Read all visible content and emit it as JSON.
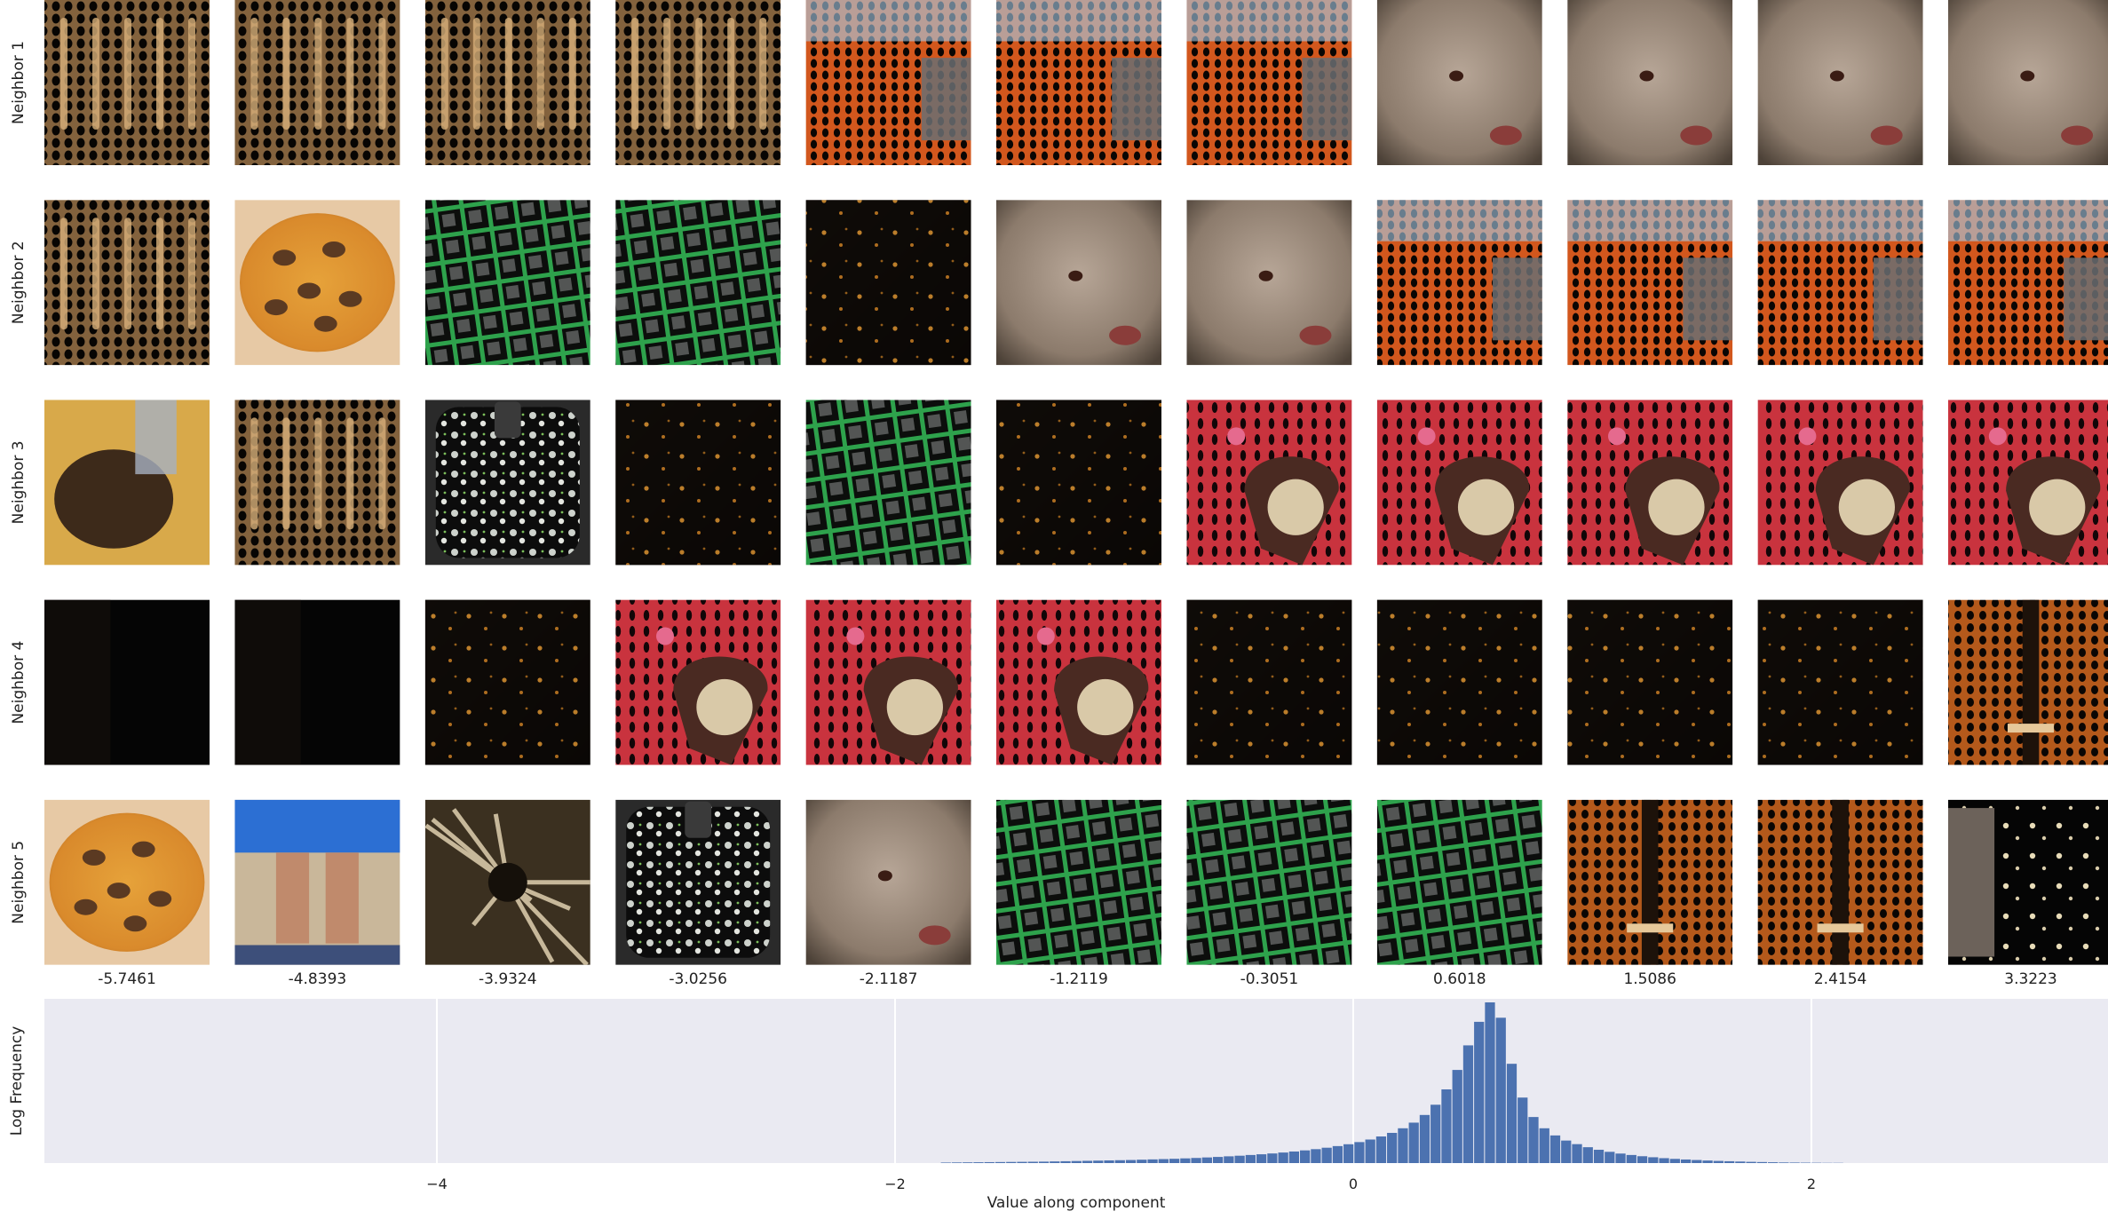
{
  "chart_data": {
    "type": "bar",
    "grid_rows": [
      "Neighbor 1",
      "Neighbor 2",
      "Neighbor 3",
      "Neighbor 4",
      "Neighbor 5"
    ],
    "grid_columns": [
      "-5.7461",
      "-4.8393",
      "-3.9324",
      "-3.0256",
      "-2.1187",
      "-1.2119",
      "-0.3051",
      "0.6018",
      "1.5086",
      "2.4154",
      "3.3223"
    ],
    "thumbnails": [
      [
        "dotted-tan-on-black",
        "dotted-tan-on-black",
        "dotted-tan-on-black",
        "dotted-tan-on-black",
        "dotted-orange-rooster",
        "dotted-orange-rooster",
        "dotted-orange-rooster",
        "mongoose",
        "mongoose",
        "mongoose",
        "mongoose"
      ],
      [
        "dotted-tan-on-black",
        "pizza",
        "green-cage",
        "green-cage",
        "dark-scene",
        "mongoose",
        "mongoose",
        "dotted-orange-rooster",
        "dotted-orange-rooster",
        "dotted-orange-rooster",
        "dotted-orange-rooster"
      ],
      [
        "dog",
        "dotted-tan-on-black",
        "dotted-bib",
        "dark-scene",
        "green-cage",
        "dark-scene",
        "red-kitty-heart",
        "red-kitty-heart",
        "red-kitty-heart",
        "red-kitty-heart",
        "red-kitty-heart"
      ],
      [
        "black",
        "black",
        "dark-scene",
        "red-kitty-heart",
        "red-kitty-heart",
        "red-kitty-heart",
        "dark-scene",
        "dark-scene",
        "dark-scene",
        "dark-scene",
        "violin"
      ],
      [
        "pizza",
        "legs-shorts",
        "spider",
        "dotted-bib",
        "mongoose",
        "green-cage",
        "green-cage",
        "green-cage",
        "violin",
        "violin",
        "dark-with-white-specks"
      ]
    ],
    "histogram": {
      "xlabel": "Value along component",
      "ylabel": "Log Frequency",
      "xticks": [
        -4,
        -2,
        0,
        2
      ],
      "xlim": [
        -5.7461,
        3.3223
      ],
      "bin_width": 0.0475,
      "bin_start": -1.8,
      "values": [
        0.05,
        0.06,
        0.07,
        0.08,
        0.09,
        0.1,
        0.11,
        0.12,
        0.13,
        0.14,
        0.16,
        0.18,
        0.2,
        0.22,
        0.24,
        0.26,
        0.28,
        0.3,
        0.33,
        0.36,
        0.39,
        0.42,
        0.46,
        0.5,
        0.55,
        0.6,
        0.66,
        0.72,
        0.79,
        0.86,
        0.94,
        1.03,
        1.13,
        1.24,
        1.36,
        1.5,
        1.66,
        1.84,
        2.05,
        2.3,
        2.6,
        2.95,
        3.4,
        3.95,
        4.7,
        5.7,
        7.2,
        9.1,
        11.5,
        13.8,
        15.7,
        14.2,
        9.7,
        6.4,
        4.5,
        3.4,
        2.7,
        2.2,
        1.85,
        1.55,
        1.3,
        1.1,
        0.93,
        0.79,
        0.67,
        0.57,
        0.48,
        0.41,
        0.35,
        0.3,
        0.25,
        0.21,
        0.18,
        0.15,
        0.12,
        0.1,
        0.08,
        0.06,
        0.05,
        0.04,
        0.03,
        0.02,
        0.02
      ],
      "bar_color": "#4c72b0",
      "background": "#eaeaf2",
      "grid": true
    }
  }
}
